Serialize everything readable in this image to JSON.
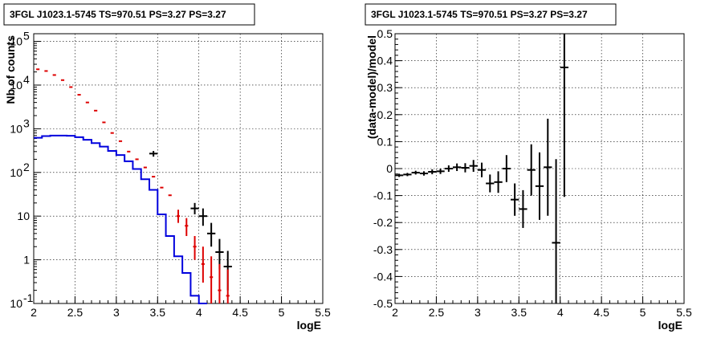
{
  "chart_data": [
    {
      "type": "line",
      "title": "3FGL J1023.1-5745 TS=970.51 PS=3.27 PS=3.27",
      "xlabel": "logE",
      "ylabel": "Nb of counts",
      "xlim": [
        2,
        5.5
      ],
      "ylim": [
        0.1,
        150000
      ],
      "yscale": "log",
      "grid": true,
      "x_ticks": [
        "2",
        "2.5",
        "3",
        "3.5",
        "4",
        "4.5",
        "5",
        "5.5"
      ],
      "y_ticks": [
        {
          "base": "10",
          "exp": "-1"
        },
        {
          "base": "1",
          "exp": ""
        },
        {
          "base": "10",
          "exp": ""
        },
        {
          "base": "10",
          "exp": "2"
        },
        {
          "base": "10",
          "exp": "3"
        },
        {
          "base": "10",
          "exp": "4"
        },
        {
          "base": "10",
          "exp": "5"
        }
      ],
      "bin_width": 0.1,
      "model_color": "#0000dd",
      "data_color": "#dd0000",
      "counts_color": "#000000",
      "model": [
        620,
        680,
        700,
        700,
        690,
        640,
        560,
        470,
        390,
        310,
        250,
        180,
        120,
        70,
        40,
        11,
        3.5,
        1.2,
        0.5,
        0.15,
        0.1
      ],
      "data_red": [
        {
          "x": 2.05,
          "y": 23000
        },
        {
          "x": 2.15,
          "y": 21000
        },
        {
          "x": 2.25,
          "y": 17000
        },
        {
          "x": 2.35,
          "y": 13000
        },
        {
          "x": 2.45,
          "y": 9000
        },
        {
          "x": 2.55,
          "y": 6000
        },
        {
          "x": 2.65,
          "y": 4000
        },
        {
          "x": 2.75,
          "y": 2600
        },
        {
          "x": 2.85,
          "y": 1400
        },
        {
          "x": 2.95,
          "y": 800
        },
        {
          "x": 3.05,
          "y": 520
        },
        {
          "x": 3.15,
          "y": 300
        },
        {
          "x": 3.25,
          "y": 200
        },
        {
          "x": 3.35,
          "y": 130
        },
        {
          "x": 3.45,
          "y": 80
        },
        {
          "x": 3.55,
          "y": 45
        },
        {
          "x": 3.65,
          "y": 30
        },
        {
          "x": 3.75,
          "y": 10,
          "lo": 7,
          "hi": 14
        },
        {
          "x": 3.85,
          "y": 6,
          "lo": 3.5,
          "hi": 9
        },
        {
          "x": 3.95,
          "y": 2,
          "lo": 1,
          "hi": 3.5
        },
        {
          "x": 4.05,
          "y": 0.8,
          "lo": 0.3,
          "hi": 2
        },
        {
          "x": 4.15,
          "y": 0.4,
          "lo": 0.1,
          "hi": 1.2
        },
        {
          "x": 4.25,
          "y": 0.2,
          "lo": 0.1,
          "hi": 0.8
        },
        {
          "x": 4.35,
          "y": 0.15,
          "lo": 0.1,
          "hi": 0.6
        }
      ],
      "data_black": [
        {
          "x": 3.45,
          "y": 270,
          "lo": 230,
          "hi": 310
        },
        {
          "x": 3.95,
          "y": 15,
          "lo": 11,
          "hi": 20
        },
        {
          "x": 4.05,
          "y": 10,
          "lo": 6,
          "hi": 15
        },
        {
          "x": 4.15,
          "y": 4,
          "lo": 2,
          "hi": 7
        },
        {
          "x": 4.25,
          "y": 1.5,
          "lo": 0.6,
          "hi": 3
        },
        {
          "x": 4.35,
          "y": 0.7,
          "lo": 0.2,
          "hi": 1.6
        }
      ]
    },
    {
      "type": "scatter",
      "title": "3FGL J1023.1-5745 TS=970.51 PS=3.27 PS=3.27",
      "xlabel": "logE",
      "ylabel": "(data-model)/model",
      "xlim": [
        2,
        5.5
      ],
      "ylim": [
        -0.5,
        0.5
      ],
      "grid": true,
      "x_ticks": [
        "2",
        "2.5",
        "3",
        "3.5",
        "4",
        "4.5",
        "5",
        "5.5"
      ],
      "y_ticks": [
        "-0.5",
        "-0.4",
        "-0.3",
        "-0.2",
        "-0.1",
        "0",
        "0.1",
        "0.2",
        "0.3",
        "0.4",
        "0.5"
      ],
      "x_halfwidth": 0.05,
      "points": [
        {
          "x": 2.05,
          "y": -0.025,
          "err": 0.006
        },
        {
          "x": 2.15,
          "y": -0.022,
          "err": 0.006
        },
        {
          "x": 2.25,
          "y": -0.015,
          "err": 0.007
        },
        {
          "x": 2.35,
          "y": -0.018,
          "err": 0.008
        },
        {
          "x": 2.45,
          "y": -0.012,
          "err": 0.009
        },
        {
          "x": 2.55,
          "y": -0.01,
          "err": 0.01
        },
        {
          "x": 2.65,
          "y": 0.0,
          "err": 0.012
        },
        {
          "x": 2.75,
          "y": 0.005,
          "err": 0.014
        },
        {
          "x": 2.85,
          "y": 0.003,
          "err": 0.017
        },
        {
          "x": 2.95,
          "y": 0.01,
          "err": 0.022
        },
        {
          "x": 3.05,
          "y": -0.005,
          "err": 0.027
        },
        {
          "x": 3.15,
          "y": -0.055,
          "err": 0.033
        },
        {
          "x": 3.25,
          "y": -0.05,
          "err": 0.04
        },
        {
          "x": 3.35,
          "y": 0.0,
          "err": 0.05
        },
        {
          "x": 3.45,
          "y": -0.115,
          "err": 0.06
        },
        {
          "x": 3.55,
          "y": -0.15,
          "err": 0.07
        },
        {
          "x": 3.65,
          "y": -0.005,
          "err": 0.095
        },
        {
          "x": 3.75,
          "y": -0.065,
          "err": 0.125
        },
        {
          "x": 3.85,
          "y": 0.005,
          "err": 0.18
        },
        {
          "x": 3.95,
          "y": -0.275,
          "err": 0.31
        },
        {
          "x": 4.05,
          "y": 0.375,
          "err": 0.48
        }
      ]
    }
  ]
}
